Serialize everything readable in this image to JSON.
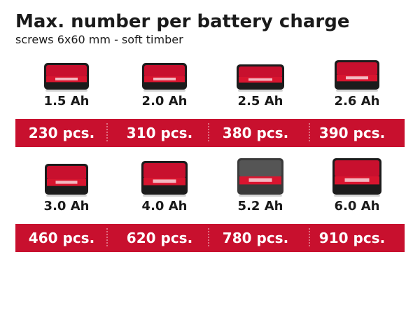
{
  "header": {
    "title": "Max. number per battery charge",
    "subtitle": "screws 6x60 mm - soft timber"
  },
  "rows": [
    {
      "items": [
        {
          "capacity": "1.5 Ah",
          "count": "230 pcs."
        },
        {
          "capacity": "2.0 Ah",
          "count": "310 pcs."
        },
        {
          "capacity": "2.5 Ah",
          "count": "380 pcs."
        },
        {
          "capacity": "2.6 Ah",
          "count": "390 pcs."
        }
      ]
    },
    {
      "items": [
        {
          "capacity": "3.0 Ah",
          "count": "460 pcs."
        },
        {
          "capacity": "4.0 Ah",
          "count": "620 pcs."
        },
        {
          "capacity": "5.2 Ah",
          "count": "780 pcs."
        },
        {
          "capacity": "6.0 Ah",
          "count": "910 pcs."
        }
      ]
    }
  ]
}
